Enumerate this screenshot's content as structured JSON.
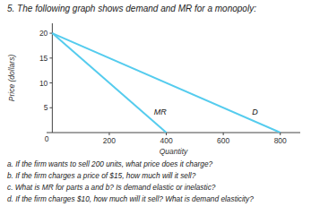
{
  "chart_data": {
    "type": "line",
    "title": "5.  The following graph shows demand and MR for a monopoly:",
    "x_label": "Quantity",
    "y_label": "Price (dollars)",
    "series": [
      {
        "name": "D",
        "color": "#55CCEE",
        "x": [
          0,
          800
        ],
        "values": [
          20,
          0
        ]
      },
      {
        "name": "MR",
        "color": "#55CCEE",
        "x": [
          0,
          400
        ],
        "values": [
          20,
          0
        ]
      }
    ],
    "xlim": [
      -20,
      870
    ],
    "ylim": [
      0,
      22
    ],
    "xticks": [
      200,
      400,
      600,
      800
    ],
    "yticks": [
      5,
      10,
      15,
      20
    ],
    "annotations": [
      {
        "text": "0",
        "x": 0,
        "y": 0
      },
      {
        "text": "a.  If the firm wants to sell 200 units, what price does it charge?"
      },
      {
        "text": "b.  If the firm charges a price of $15, how much will it sell?"
      },
      {
        "text": "c.  What is MR for parts a and b? Is demand elastic or inelastic?"
      },
      {
        "text": "d.  If the firm charges $10, how much will it sell? What is demand elasticity?"
      }
    ]
  }
}
